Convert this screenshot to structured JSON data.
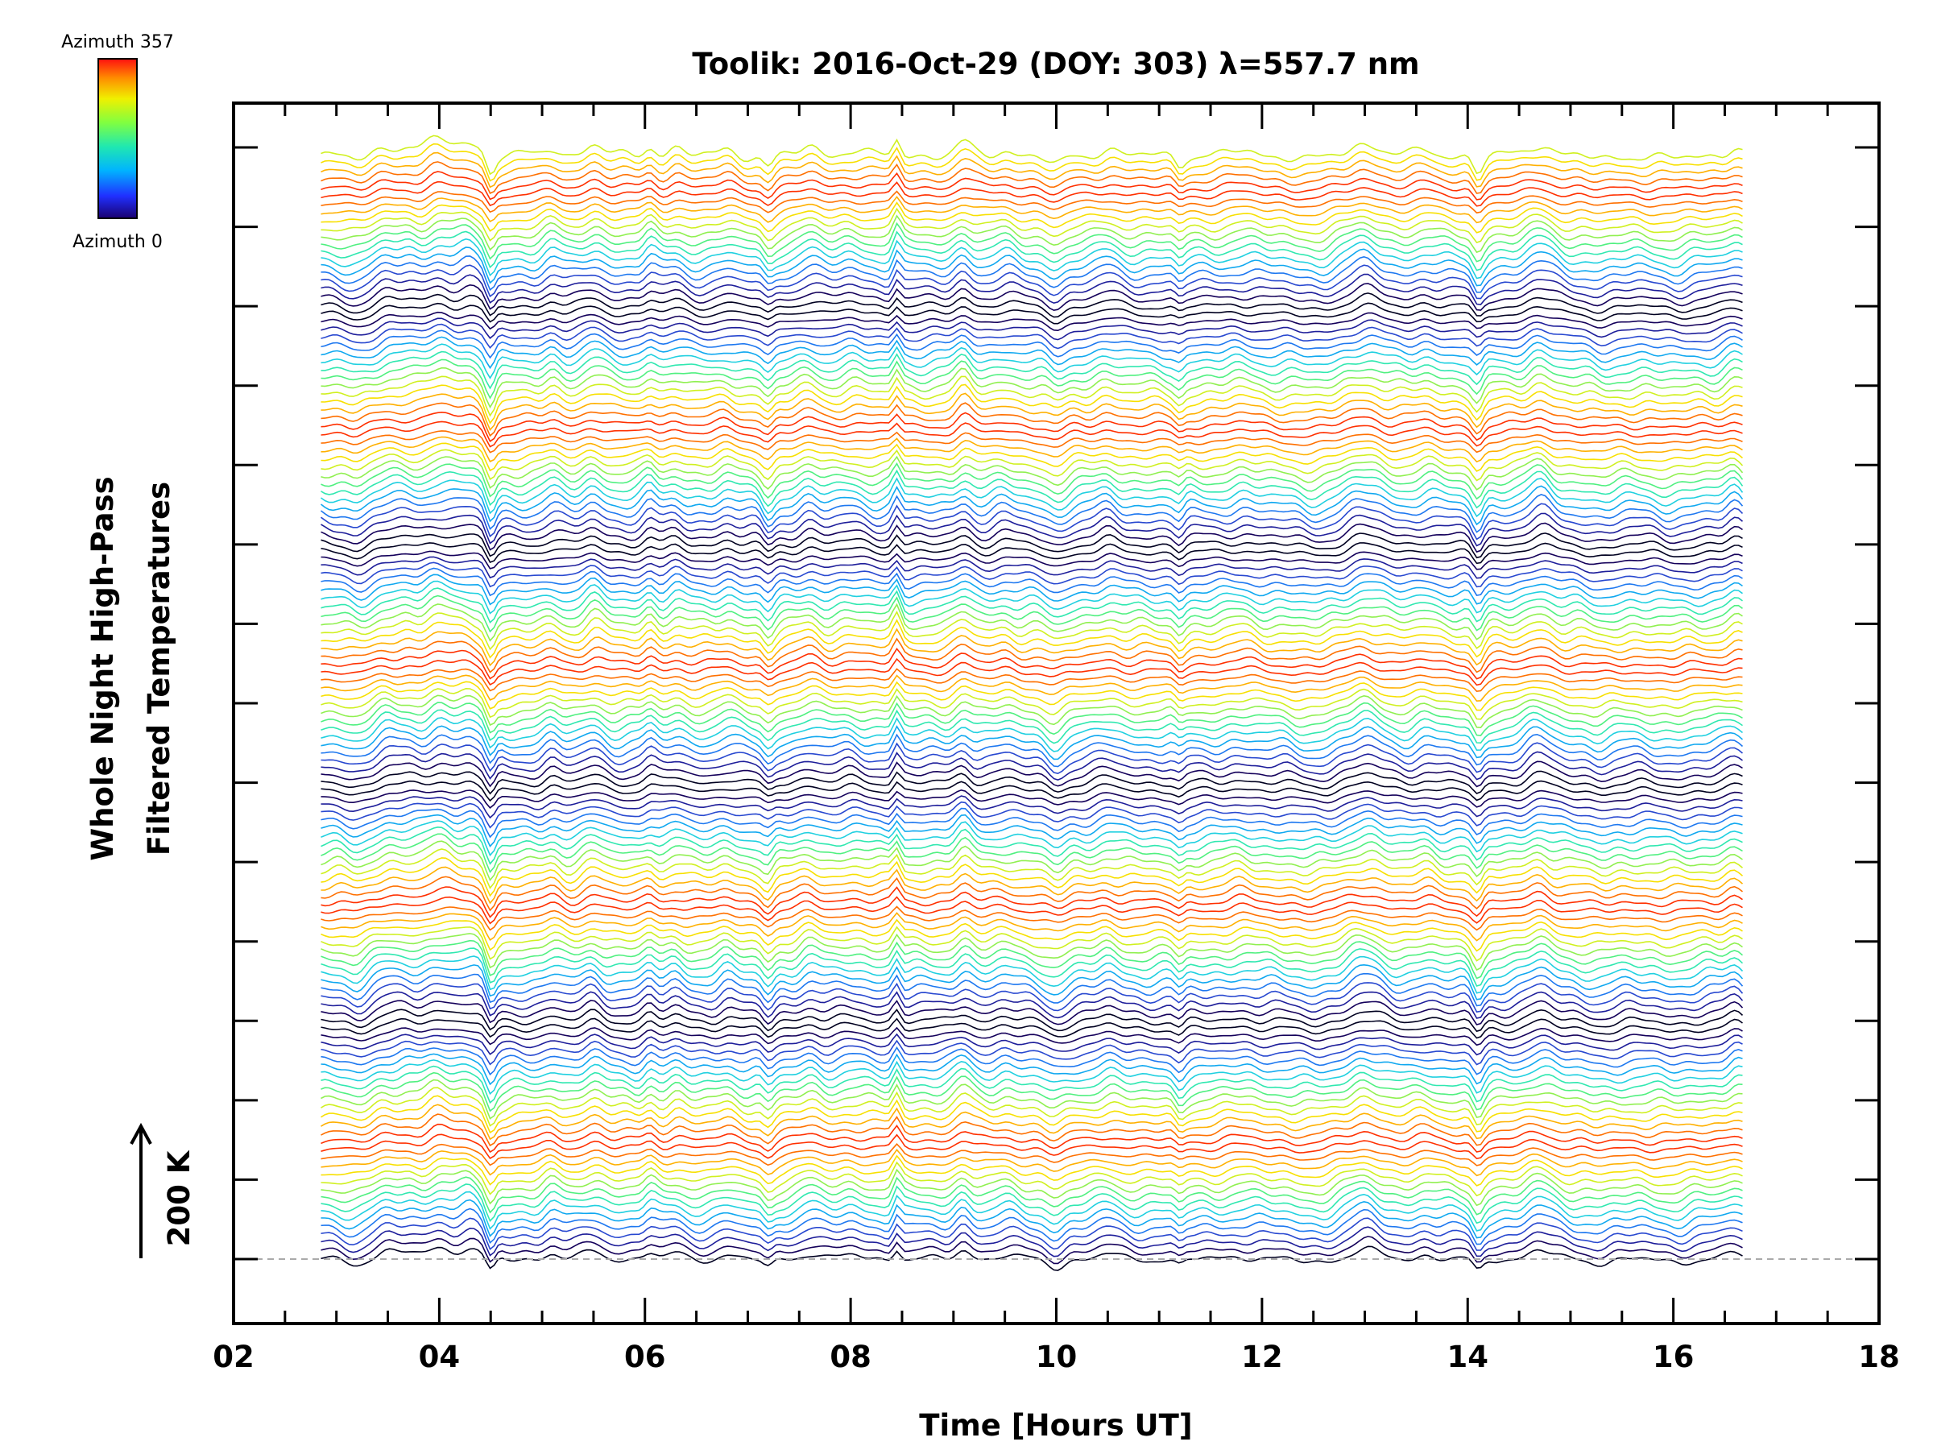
{
  "chart_data": {
    "type": "line",
    "title": "Toolik: 2016-Oct-29 (DOY: 303) λ=557.7 nm",
    "xlabel": "Time [Hours UT]",
    "ylabel": [
      "Whole Night High-Pass",
      "Filtered Temperatures"
    ],
    "xlim": [
      2,
      18
    ],
    "x_ticks": [
      2,
      4,
      6,
      8,
      10,
      12,
      14,
      16,
      18
    ],
    "x_tick_labels": [
      "02",
      "04",
      "06",
      "08",
      "10",
      "12",
      "14",
      "16",
      "18"
    ],
    "data_range_hours": [
      2.85,
      16.7
    ],
    "series_count": 140,
    "scale_bar": {
      "label": "200 K"
    },
    "colorbar": {
      "label_top": "Azimuth 357",
      "label_bottom": "Azimuth 0",
      "colormap": "rainbow"
    },
    "baseline_dashed": true,
    "grid": false,
    "note": "Stacked time series of high-pass filtered temperatures for each azimuth, offset vertically; colours cycle by azimuth."
  }
}
